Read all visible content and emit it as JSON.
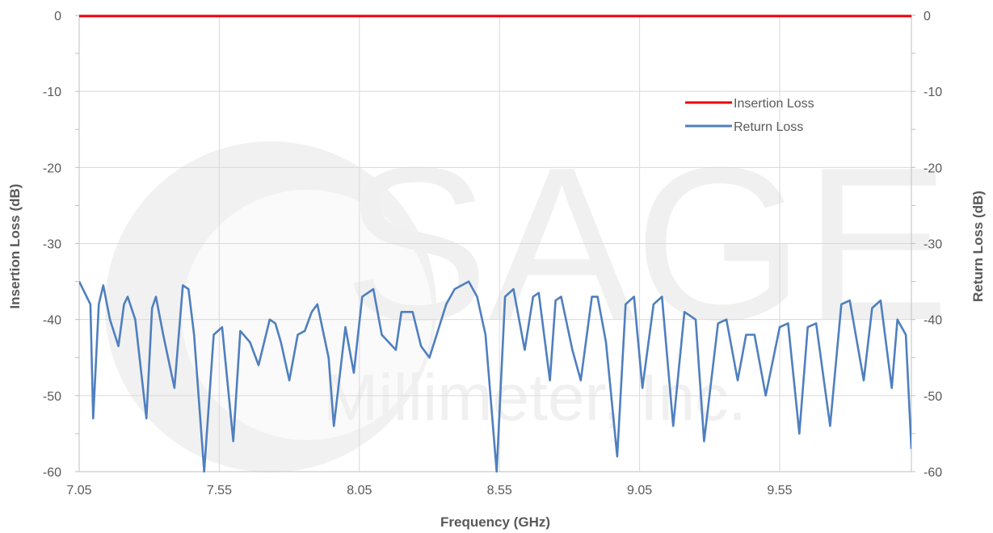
{
  "chart_data": {
    "type": "line",
    "xlabel": "Frequency (GHz)",
    "ylabel_left": "Insertion Loss (dB)",
    "ylabel_right": "Return Loss (dB)",
    "xlim": [
      7.05,
      10.02
    ],
    "ylim": [
      -60,
      0
    ],
    "x_ticks": [
      7.05,
      7.55,
      8.05,
      8.55,
      9.05,
      9.55
    ],
    "x_tick_labels": [
      "7.05",
      "7.55",
      "8.05",
      "8.55",
      "9.05",
      "9.55"
    ],
    "y_ticks": [
      0,
      -10,
      -20,
      -30,
      -40,
      -50,
      -60
    ],
    "y_tick_labels": [
      "0",
      "-10",
      "-20",
      "-30",
      "-40",
      "-50",
      "-60"
    ],
    "grid": true,
    "legend_position": "top-right",
    "watermark": {
      "logo_text": "SAGE",
      "sub_text": "Millimeter, Inc."
    },
    "series": [
      {
        "name": "Insertion Loss",
        "color": "#e8000b",
        "axis": "left",
        "x": [
          7.05,
          10.02
        ],
        "y": [
          -0.1,
          -0.1
        ]
      },
      {
        "name": "Return Loss",
        "color": "#4f7fbf",
        "axis": "right",
        "x": [
          7.05,
          7.09,
          7.1,
          7.12,
          7.136,
          7.16,
          7.19,
          7.21,
          7.223,
          7.25,
          7.29,
          7.31,
          7.324,
          7.35,
          7.39,
          7.42,
          7.44,
          7.46,
          7.496,
          7.53,
          7.56,
          7.6,
          7.625,
          7.66,
          7.69,
          7.73,
          7.75,
          7.77,
          7.8,
          7.83,
          7.855,
          7.88,
          7.9,
          7.94,
          7.959,
          8.0,
          8.03,
          8.06,
          8.1,
          8.13,
          8.18,
          8.2,
          8.24,
          8.27,
          8.3,
          8.36,
          8.39,
          8.44,
          8.47,
          8.5,
          8.54,
          8.57,
          8.6,
          8.64,
          8.67,
          8.69,
          8.73,
          8.75,
          8.77,
          8.81,
          8.84,
          8.88,
          8.9,
          8.93,
          8.97,
          9.0,
          9.03,
          9.06,
          9.1,
          9.13,
          9.17,
          9.21,
          9.25,
          9.28,
          9.33,
          9.36,
          9.4,
          9.43,
          9.46,
          9.5,
          9.55,
          9.58,
          9.62,
          9.65,
          9.68,
          9.73,
          9.77,
          9.8,
          9.85,
          9.88,
          9.91,
          9.95,
          9.97,
          10.0,
          10.02
        ],
        "y": [
          -35,
          -38,
          -53,
          -38,
          -35.5,
          -40,
          -43.5,
          -38,
          -37,
          -40,
          -53,
          -38.5,
          -37,
          -42,
          -49,
          -35.5,
          -36,
          -42,
          -60,
          -42,
          -41,
          -56,
          -41.5,
          -43,
          -46,
          -40,
          -40.5,
          -43,
          -48,
          -42,
          -41.5,
          -39,
          -38,
          -45,
          -54,
          -41,
          -47,
          -37,
          -36,
          -42,
          -44,
          -39,
          -39,
          -43.5,
          -45,
          -38,
          -36,
          -35,
          -37,
          -42,
          -60,
          -37,
          -36,
          -44,
          -37,
          -36.5,
          -48,
          -37.5,
          -37,
          -44,
          -48,
          -37,
          -37,
          -43,
          -58,
          -38,
          -37,
          -49,
          -38,
          -37,
          -54,
          -39,
          -40,
          -56,
          -40.5,
          -40,
          -48,
          -42,
          -42,
          -50,
          -41,
          -40.5,
          -55,
          -41,
          -40.5,
          -54,
          -38,
          -37.5,
          -48,
          -38.5,
          -37.5,
          -49,
          -40,
          -42,
          -57
        ]
      }
    ]
  }
}
